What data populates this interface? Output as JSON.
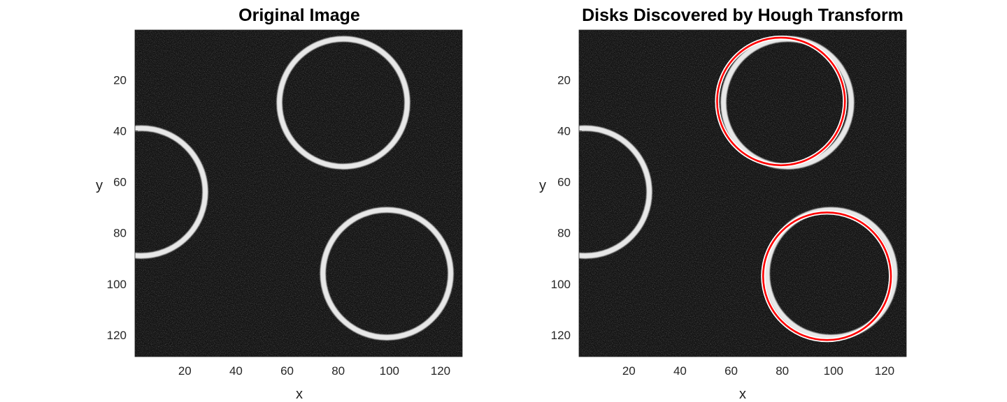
{
  "figure": {
    "panels": [
      {
        "title": "Original Image",
        "xlabel": "x",
        "ylabel": "y"
      },
      {
        "title": "Disks Discovered by Hough Transform",
        "xlabel": "x",
        "ylabel": "y"
      }
    ]
  },
  "chart_data": [
    {
      "type": "image",
      "title": "Original Image",
      "xlabel": "x",
      "ylabel": "y",
      "xlim": [
        0.5,
        128.5
      ],
      "ylim": [
        0.5,
        128.5
      ],
      "y_direction": "reversed",
      "xticks": [
        20,
        40,
        60,
        80,
        100,
        120
      ],
      "yticks": [
        20,
        40,
        60,
        80,
        100,
        120
      ],
      "colormap": "gray",
      "background": "#101010",
      "rings": [
        {
          "cx": 82,
          "cy": 29,
          "r": 25,
          "color": "#e8e8e8"
        },
        {
          "cx": 99,
          "cy": 96,
          "r": 25,
          "color": "#e8e8e8"
        },
        {
          "cx": 3,
          "cy": 64,
          "r": 25,
          "color": "#e8e8e8"
        }
      ]
    },
    {
      "type": "image",
      "title": "Disks Discovered by Hough Transform",
      "xlabel": "x",
      "ylabel": "y",
      "xlim": [
        0.5,
        128.5
      ],
      "ylim": [
        0.5,
        128.5
      ],
      "y_direction": "reversed",
      "xticks": [
        20,
        40,
        60,
        80,
        100,
        120
      ],
      "yticks": [
        20,
        40,
        60,
        80,
        100,
        120
      ],
      "colormap": "gray",
      "background": "#101010",
      "rings": [
        {
          "cx": 82,
          "cy": 29,
          "r": 25,
          "color": "#e8e8e8"
        },
        {
          "cx": 99,
          "cy": 96,
          "r": 25,
          "color": "#e8e8e8"
        },
        {
          "cx": 3,
          "cy": 64,
          "r": 25,
          "color": "#e8e8e8"
        }
      ],
      "detected_circles": [
        {
          "cx": 79.5,
          "cy": 28.5,
          "r": 25,
          "color": "#ff0000"
        },
        {
          "cx": 97.5,
          "cy": 97,
          "r": 25,
          "color": "#ff0000"
        }
      ]
    }
  ]
}
